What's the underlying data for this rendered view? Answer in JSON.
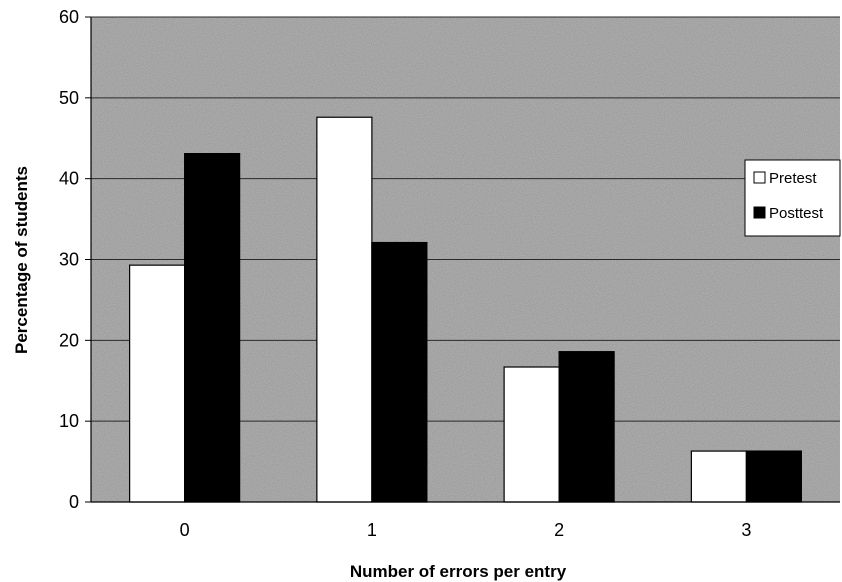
{
  "chart_data": {
    "type": "bar",
    "title": "",
    "xlabel": "Number of errors per entry",
    "ylabel": "Percentage of students",
    "categories": [
      "0",
      "1",
      "2",
      "3"
    ],
    "series": [
      {
        "name": "Pretest",
        "values": [
          29.3,
          47.6,
          16.7,
          6.3
        ],
        "color": "#ffffff"
      },
      {
        "name": "Posttest",
        "values": [
          43.1,
          32.1,
          18.6,
          6.3
        ],
        "color": "#000000"
      }
    ],
    "ylim": [
      0,
      60
    ],
    "yticks": [
      "0",
      "10",
      "20",
      "30",
      "40",
      "50",
      "60"
    ],
    "grid": true,
    "legend_position": "right",
    "plot_background": "#b5b5b5"
  }
}
